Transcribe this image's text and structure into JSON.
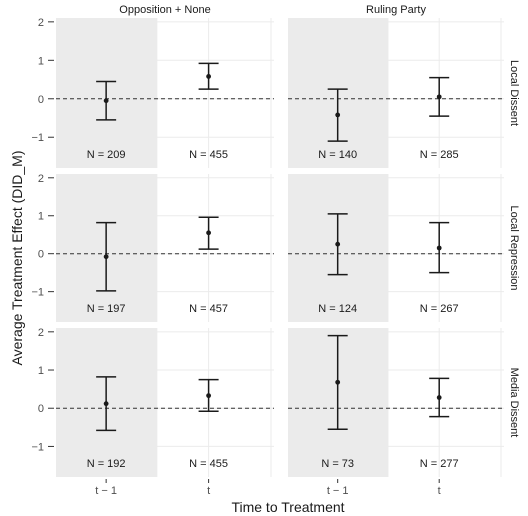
{
  "chart_data": {
    "type": "errorbar",
    "xlabel": "Time to Treatment",
    "ylabel": "Average Treatment Effect (DID_M)",
    "x_categories": [
      "t − 1",
      "t"
    ],
    "ylim": [
      -1.8,
      2.1
    ],
    "y_ticks": [
      -1,
      0,
      1,
      2
    ],
    "column_facets": [
      "Opposition + None",
      "Ruling Party"
    ],
    "row_facets": [
      "Local Dissent",
      "Local Repression",
      "Media Dissent"
    ],
    "reference_line": 0,
    "panels": [
      {
        "row": "Local Dissent",
        "column": "Opposition + None",
        "points": [
          {
            "x": "t − 1",
            "estimate": -0.05,
            "lower": -0.55,
            "upper": 0.45,
            "n_label": "N = 209"
          },
          {
            "x": "t",
            "estimate": 0.58,
            "lower": 0.25,
            "upper": 0.92,
            "n_label": "N = 455"
          }
        ]
      },
      {
        "row": "Local Dissent",
        "column": "Ruling Party",
        "points": [
          {
            "x": "t − 1",
            "estimate": -0.42,
            "lower": -1.1,
            "upper": 0.25,
            "n_label": "N = 140"
          },
          {
            "x": "t",
            "estimate": 0.05,
            "lower": -0.45,
            "upper": 0.55,
            "n_label": "N = 285"
          }
        ]
      },
      {
        "row": "Local Repression",
        "column": "Opposition + None",
        "points": [
          {
            "x": "t − 1",
            "estimate": -0.08,
            "lower": -0.98,
            "upper": 0.82,
            "n_label": "N = 197"
          },
          {
            "x": "t",
            "estimate": 0.55,
            "lower": 0.12,
            "upper": 0.96,
            "n_label": "N = 457"
          }
        ]
      },
      {
        "row": "Local Repression",
        "column": "Ruling Party",
        "points": [
          {
            "x": "t − 1",
            "estimate": 0.25,
            "lower": -0.55,
            "upper": 1.05,
            "n_label": "N = 124"
          },
          {
            "x": "t",
            "estimate": 0.15,
            "lower": -0.5,
            "upper": 0.82,
            "n_label": "N = 267"
          }
        ]
      },
      {
        "row": "Media Dissent",
        "column": "Opposition + None",
        "points": [
          {
            "x": "t − 1",
            "estimate": 0.12,
            "lower": -0.58,
            "upper": 0.82,
            "n_label": "N = 192"
          },
          {
            "x": "t",
            "estimate": 0.33,
            "lower": -0.08,
            "upper": 0.75,
            "n_label": "N = 455"
          }
        ]
      },
      {
        "row": "Media Dissent",
        "column": "Ruling Party",
        "points": [
          {
            "x": "t − 1",
            "estimate": 0.68,
            "lower": -0.55,
            "upper": 1.9,
            "n_label": "N = 73"
          },
          {
            "x": "t",
            "estimate": 0.28,
            "lower": -0.22,
            "upper": 0.78,
            "n_label": "N = 277"
          }
        ]
      }
    ],
    "shaded_category": "t − 1",
    "colors": {
      "shade": "#ebebeb",
      "grid": "#ebebeb",
      "points": "#1a1a1a",
      "text": "#1a1a1a"
    }
  }
}
